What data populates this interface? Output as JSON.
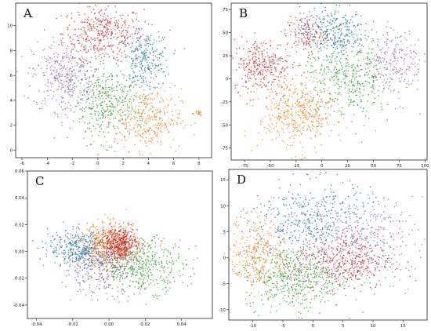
{
  "colors": {
    "blue": "#1f77b4",
    "orange": "#ff7f0e",
    "green": "#2ca02c",
    "red": "#d62728",
    "purple": "#9467bd"
  },
  "chart_data": [
    {
      "type": "scatter",
      "label": "A",
      "xlim": [
        -6.5,
        9
      ],
      "ylim": [
        -0.6,
        11.8
      ],
      "xticks": [
        -6,
        -4,
        -2,
        0,
        2,
        4,
        6,
        8
      ],
      "yticks": [
        0,
        2,
        4,
        6,
        8,
        10
      ],
      "clusters": [
        {
          "color": "red",
          "cx": 0.4,
          "cy": 9.4,
          "sx": 1.6,
          "sy": 1.1,
          "n": 380
        },
        {
          "color": "blue",
          "cx": 3.7,
          "cy": 7.2,
          "sx": 1.0,
          "sy": 1.2,
          "n": 260
        },
        {
          "color": "purple",
          "cx": -2.6,
          "cy": 6.0,
          "sx": 1.3,
          "sy": 1.4,
          "n": 360
        },
        {
          "color": "green",
          "cx": 0.8,
          "cy": 3.6,
          "sx": 1.5,
          "sy": 1.5,
          "n": 400
        },
        {
          "color": "orange",
          "cx": 4.0,
          "cy": 2.5,
          "sx": 1.3,
          "sy": 1.2,
          "n": 300
        },
        {
          "color": "orange",
          "cx": 7.8,
          "cy": 3.0,
          "sx": 0.3,
          "sy": 0.15,
          "n": 20
        }
      ]
    },
    {
      "type": "scatter",
      "label": "B",
      "xlim": [
        -88,
        102
      ],
      "ylim": [
        -88,
        82
      ],
      "xticks": [
        -75,
        -50,
        -25,
        0,
        25,
        50,
        75,
        100
      ],
      "yticks": [
        -75,
        -50,
        -25,
        0,
        25,
        50,
        75
      ],
      "clusters": [
        {
          "color": "red",
          "cx": -58,
          "cy": 15,
          "sx": 14,
          "sy": 14,
          "n": 300
        },
        {
          "color": "red",
          "cx": -15,
          "cy": 48,
          "sx": 10,
          "sy": 10,
          "n": 140
        },
        {
          "color": "blue",
          "cx": 10,
          "cy": 52,
          "sx": 16,
          "sy": 14,
          "n": 280
        },
        {
          "color": "purple",
          "cx": 70,
          "cy": 20,
          "sx": 14,
          "sy": 17,
          "n": 220
        },
        {
          "color": "green",
          "cx": 25,
          "cy": 0,
          "sx": 22,
          "sy": 22,
          "n": 420
        },
        {
          "color": "orange",
          "cx": -25,
          "cy": -38,
          "sx": 18,
          "sy": 20,
          "n": 420
        }
      ]
    },
    {
      "type": "scatter",
      "label": "C",
      "xlim": [
        -0.045,
        0.057
      ],
      "ylim": [
        -0.05,
        0.06
      ],
      "xticks": [
        -0.04,
        -0.02,
        0.0,
        0.02,
        0.04
      ],
      "yticks": [
        -0.04,
        -0.02,
        0.0,
        0.02,
        0.04,
        0.06
      ],
      "xtick_labels": [
        "-0.04",
        "-0.02",
        "0.00",
        "0.02",
        "0.04"
      ],
      "ytick_labels": [
        "-0.04",
        "-0.02",
        "0.00",
        "0.02",
        "0.04",
        "0.06"
      ],
      "clusters": [
        {
          "color": "green",
          "cx": 0.018,
          "cy": -0.01,
          "sx": 0.012,
          "sy": 0.01,
          "n": 450
        },
        {
          "color": "purple",
          "cx": -0.005,
          "cy": -0.012,
          "sx": 0.01,
          "sy": 0.01,
          "n": 300
        },
        {
          "color": "blue",
          "cx": -0.015,
          "cy": 0.002,
          "sx": 0.009,
          "sy": 0.007,
          "n": 380
        },
        {
          "color": "orange",
          "cx": 0.0,
          "cy": 0.005,
          "sx": 0.008,
          "sy": 0.008,
          "n": 420
        },
        {
          "color": "red",
          "cx": 0.006,
          "cy": 0.006,
          "sx": 0.005,
          "sy": 0.006,
          "n": 420
        }
      ]
    },
    {
      "type": "scatter",
      "label": "D",
      "xlim": [
        -14,
        19
      ],
      "ylim": [
        -12,
        17
      ],
      "xticks": [
        -10,
        -5,
        0,
        5,
        10,
        15
      ],
      "yticks": [
        -10,
        -5,
        0,
        5,
        10,
        15
      ],
      "clusters": [
        {
          "color": "blue",
          "cx": 0,
          "cy": 7,
          "sx": 5,
          "sy": 4,
          "n": 450
        },
        {
          "color": "purple",
          "cx": 8,
          "cy": 3,
          "sx": 5,
          "sy": 4,
          "n": 350
        },
        {
          "color": "orange",
          "cx": -9,
          "cy": 1,
          "sx": 2.5,
          "sy": 3.5,
          "n": 320
        },
        {
          "color": "red",
          "cx": 5,
          "cy": -1,
          "sx": 4,
          "sy": 2.5,
          "n": 380
        },
        {
          "color": "green",
          "cx": -3,
          "cy": -4,
          "sx": 4,
          "sy": 3,
          "n": 480
        }
      ]
    }
  ]
}
